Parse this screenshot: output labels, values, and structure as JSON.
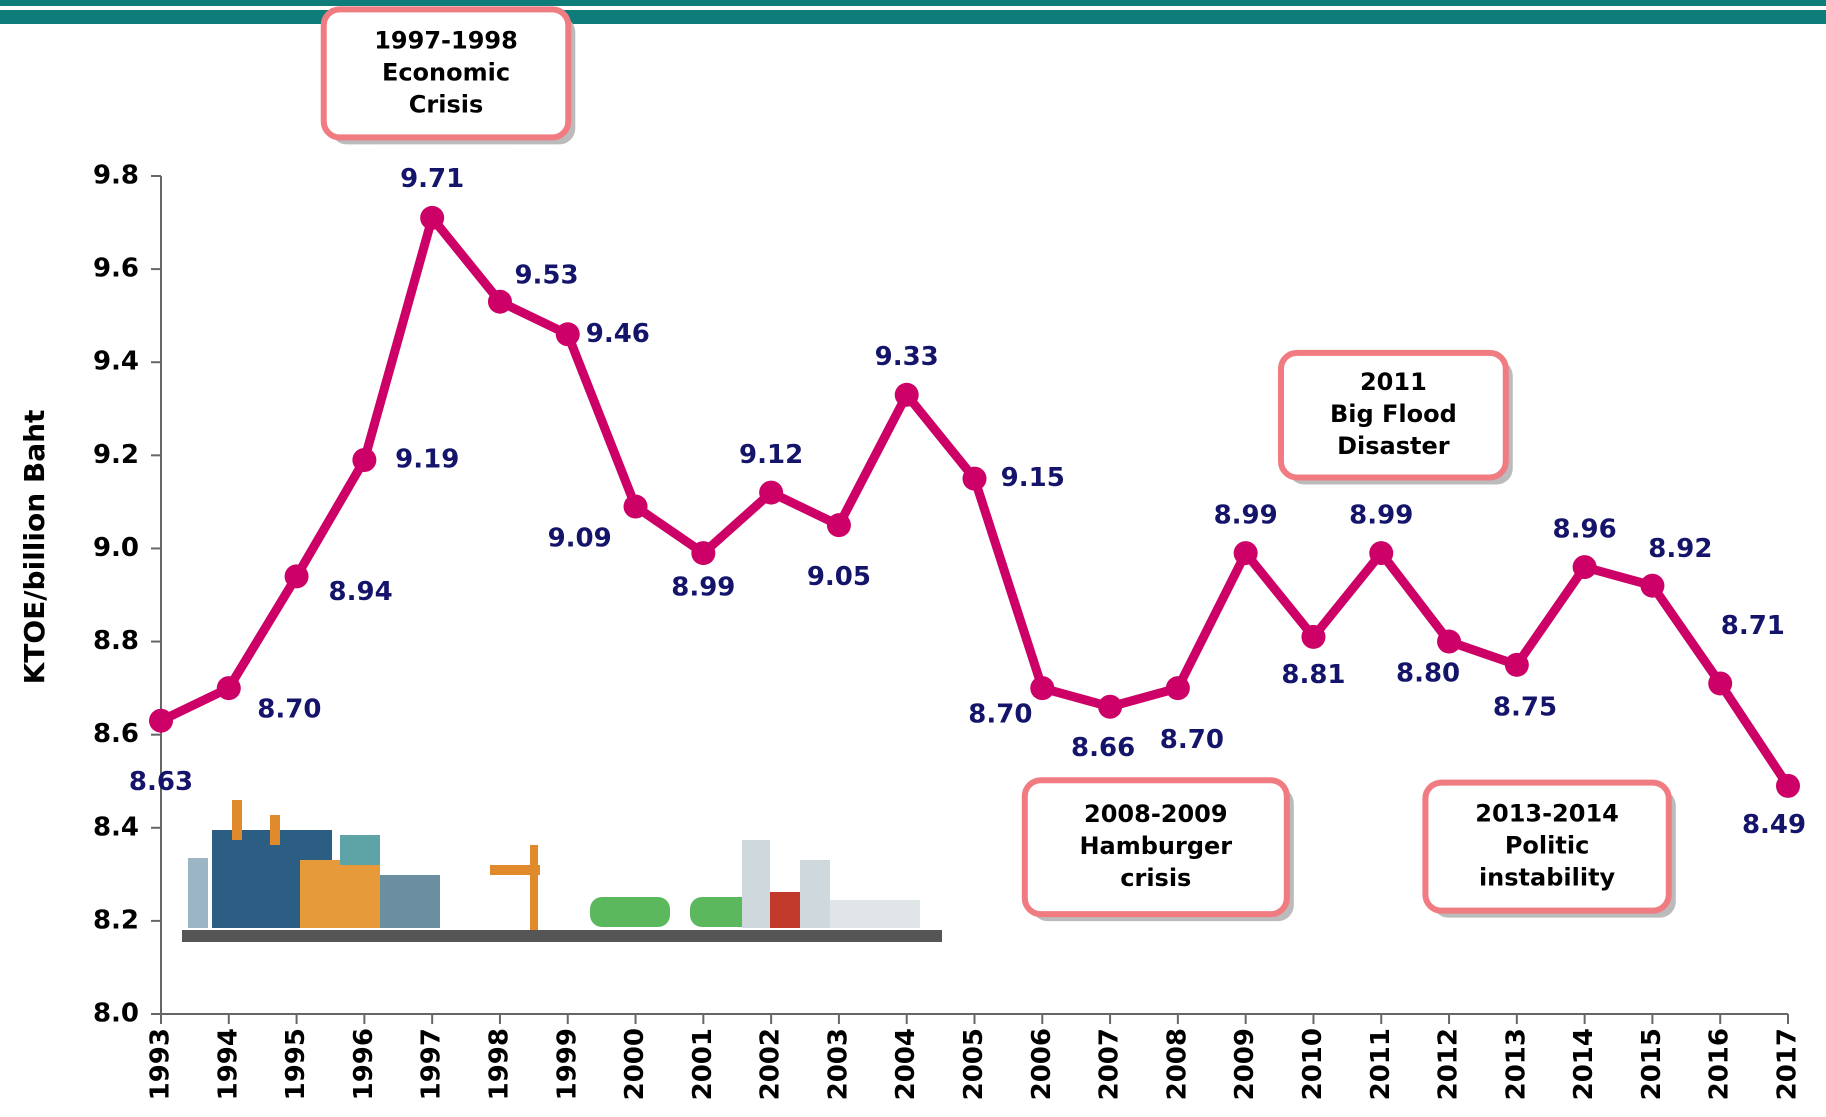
{
  "chart_data": {
    "type": "line",
    "y_label": "KTOE/billion Baht",
    "categories": [
      "1993",
      "1994",
      "1995",
      "1996",
      "1997",
      "1998",
      "1999",
      "2000",
      "2001",
      "2002",
      "2003",
      "2004",
      "2005",
      "2006",
      "2007",
      "2008",
      "2009",
      "2010",
      "2011",
      "2012",
      "2013",
      "2014",
      "2015",
      "2016",
      "2017"
    ],
    "values": [
      8.63,
      8.7,
      8.94,
      9.19,
      9.71,
      9.53,
      9.46,
      9.09,
      8.99,
      9.12,
      9.05,
      9.33,
      9.15,
      8.7,
      8.66,
      8.7,
      8.99,
      8.81,
      8.99,
      8.8,
      8.75,
      8.96,
      8.92,
      8.71,
      8.49
    ],
    "value_labels": [
      "8.63",
      "8.70",
      "8.94",
      "9.19",
      "9.71",
      "9.53",
      "9.46",
      "9.09",
      "8.99",
      "9.12",
      "9.05",
      "9.33",
      "9.15",
      "8.70",
      "8.66",
      "8.70",
      "8.99",
      "8.81",
      "8.99",
      "8.80",
      "8.75",
      "8.96",
      "8.92",
      "8.71",
      "8.49"
    ],
    "color": "#cc0066",
    "label_color": "#14146b",
    "ylim": [
      8.0,
      9.8
    ],
    "yticks": [
      {
        "value": 8.0,
        "label": "8.0"
      },
      8.2,
      8.4,
      8.6,
      8.8,
      {
        "value": 9.0,
        "label": "9.0"
      },
      9.2,
      9.4,
      9.6,
      9.8
    ],
    "grid": false,
    "annotations": [
      {
        "lines": [
          "1997-1998",
          "Economic",
          "Crisis"
        ]
      },
      {
        "lines": [
          "2011",
          "Big Flood",
          "Disaster"
        ]
      },
      {
        "lines": [
          "2008-2009",
          "Hamburger",
          "crisis"
        ]
      },
      {
        "lines": [
          "2013-2014",
          "Politic",
          "instability"
        ]
      }
    ]
  }
}
